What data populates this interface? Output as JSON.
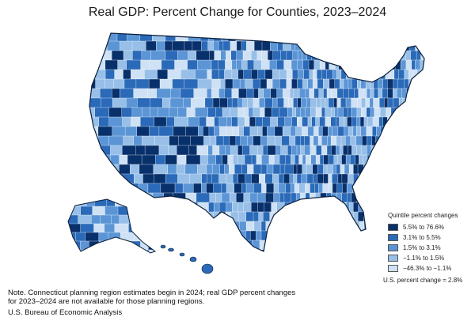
{
  "title": "Real GDP: Percent Change for Counties, 2023–2024",
  "legend": {
    "title": "Quintile percent changes",
    "items": [
      {
        "label": "5.5% to 76.6%",
        "color": "#08306b"
      },
      {
        "label": "3.1% to 5.5%",
        "color": "#2a6ab8"
      },
      {
        "label": "1.5% to 3.1%",
        "color": "#5b95d6"
      },
      {
        "label": "−1.1% to 1.5%",
        "color": "#97bfe8"
      },
      {
        "label": "−46.3% to −1.1%",
        "color": "#cfe1f5"
      }
    ],
    "us_change": "U.S. percent change = 2.8%"
  },
  "note_line1": "Note. Connecticut planning region estimates begin in 2024; real GDP percent changes",
  "note_line2": "for 2023–2024 are not available for those planning regions.",
  "source": "U.S. Bureau of Economic Analysis",
  "na_color": "#c8c8c8",
  "regions": [
    "contiguous-us",
    "alaska",
    "hawaii"
  ]
}
